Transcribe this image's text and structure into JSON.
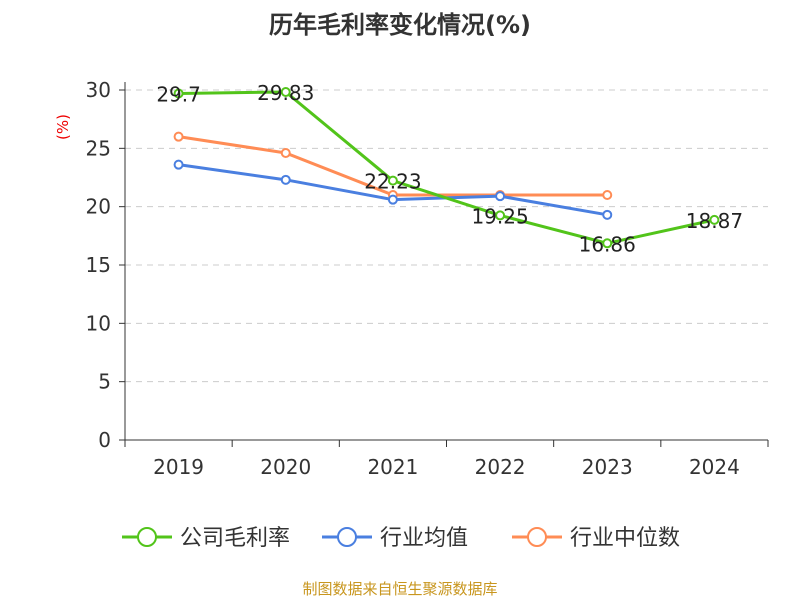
{
  "chart_data": {
    "type": "line",
    "title": "历年毛利率变化情况(%)",
    "ylabel": "(%)",
    "xlabel": "",
    "categories": [
      "2019",
      "2020",
      "2021",
      "2022",
      "2023",
      "2024"
    ],
    "ylim": [
      0,
      30
    ],
    "yticks": [
      0,
      5,
      10,
      15,
      20,
      25,
      30
    ],
    "grid": true,
    "legend_position": "bottom",
    "series": [
      {
        "name": "公司毛利率",
        "color": "#52c41a",
        "values": [
          29.7,
          29.83,
          22.23,
          19.25,
          16.86,
          18.87
        ],
        "labels": [
          "29.7",
          "29.83",
          "22.23",
          "19.25",
          "16.86",
          "18.87"
        ]
      },
      {
        "name": "行业均值",
        "color": "#4a7fe0",
        "values": [
          23.6,
          22.3,
          20.6,
          20.9,
          19.3,
          null
        ]
      },
      {
        "name": "行业中位数",
        "color": "#ff8c55",
        "values": [
          26.0,
          24.6,
          21.0,
          21.0,
          21.0,
          null
        ]
      }
    ]
  },
  "source": "制图数据来自恒生聚源数据库"
}
